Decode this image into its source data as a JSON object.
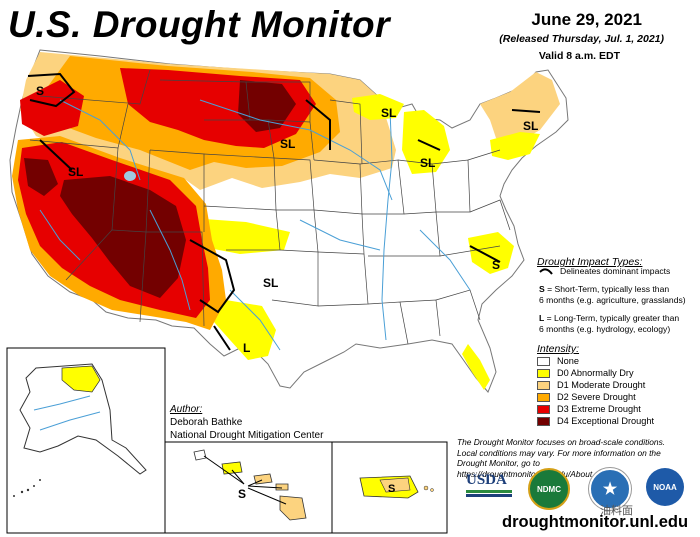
{
  "header": {
    "title": "U.S. Drought Monitor",
    "date": "June 29, 2021",
    "released": "(Released Thursday, Jul. 1, 2021)",
    "valid": "Valid 8 a.m. EDT"
  },
  "map_labels": {
    "S": "S",
    "SL": "SL",
    "L": "L"
  },
  "impact_legend": {
    "title": "Drought Impact Types:",
    "delineates": "Delineates dominant impacts",
    "short_term_key": "S",
    "short_term_line1": " = Short-Term, typically less than",
    "short_term_line2": "6 months (e.g. agriculture, grasslands)",
    "long_term_key": "L",
    "long_term_line1": " = Long-Term, typically greater than",
    "long_term_line2": "6 months (e.g. hydrology, ecology)"
  },
  "intensity_legend": {
    "title": "Intensity:",
    "items": [
      {
        "label": "None",
        "color": "#ffffff"
      },
      {
        "label": "D0 Abnormally Dry",
        "color": "#ffff00"
      },
      {
        "label": "D1 Moderate Drought",
        "color": "#fcd37f"
      },
      {
        "label": "D2 Severe Drought",
        "color": "#ffaa00"
      },
      {
        "label": "D3 Extreme Drought",
        "color": "#e60000"
      },
      {
        "label": "D4 Exceptional Drought",
        "color": "#730000"
      }
    ]
  },
  "author": {
    "label": "Author:",
    "name": "Deborah Bathke",
    "org": "National Drought Mitigation Center"
  },
  "note": {
    "line1": "The Drought Monitor focuses on broad-scale conditions.",
    "line2": "Local conditions may vary. For more information on the",
    "line3": "Drought Monitor, go to https://droughtmonitor.unl.edu/About.aspx"
  },
  "logos": {
    "usda": "USDA",
    "ndmc": "NDMC",
    "noaa": "NOAA"
  },
  "watermark": "油料面",
  "url": "droughtmonitor.unl.edu"
}
